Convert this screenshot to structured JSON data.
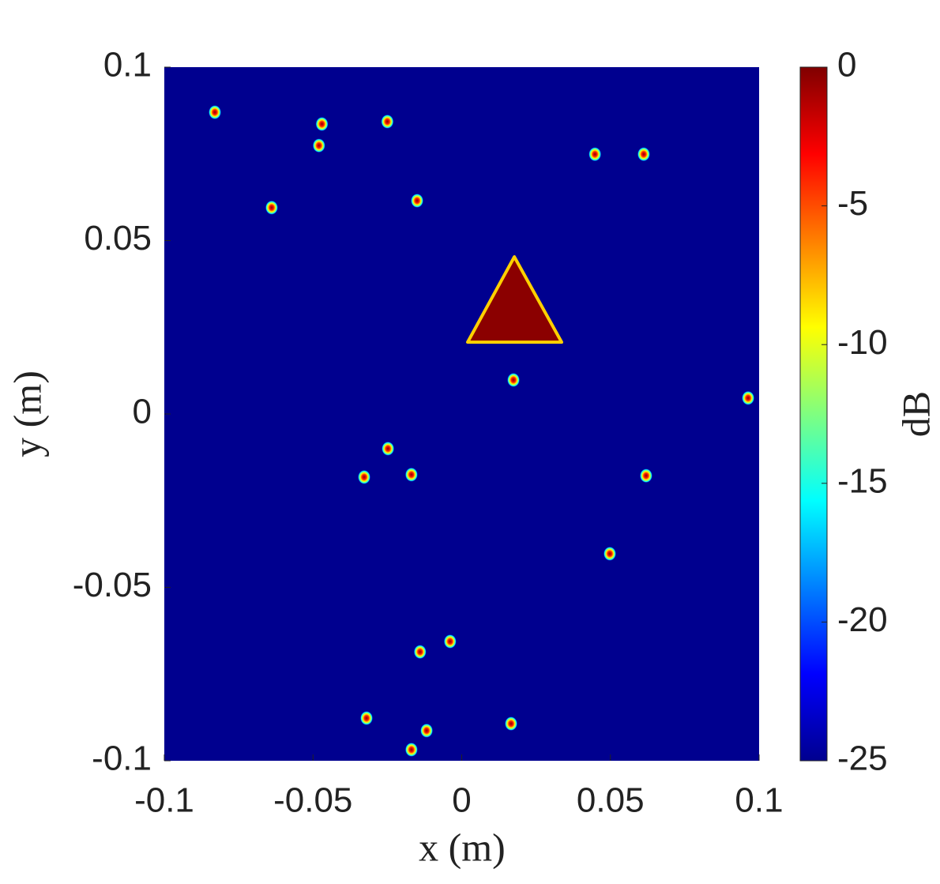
{
  "chart_data": {
    "type": "scatter",
    "xlabel": "x (m)",
    "ylabel": "y (m)",
    "xlim": [
      -0.1,
      0.1
    ],
    "xticks": [
      -0.1,
      -0.05,
      0,
      0.05,
      0.1
    ],
    "ylim": [
      -0.1,
      0.1
    ],
    "yticks": [
      -0.1,
      -0.05,
      0,
      0.05,
      0.1
    ],
    "background_color": "#00008f",
    "series": [
      {
        "x": [
          -0.083,
          -0.047,
          -0.025,
          -0.048,
          0.0448,
          0.0612,
          -0.0639,
          -0.015,
          0.0174,
          0.0963,
          -0.0248,
          -0.0328,
          -0.0169,
          0.062,
          0.0498,
          -0.0039,
          -0.014,
          -0.032,
          -0.0118,
          0.0166,
          -0.0169
        ],
        "y": [
          0.087,
          0.0836,
          0.0843,
          0.0774,
          0.0749,
          0.0749,
          0.0595,
          0.0615,
          0.0098,
          0.0046,
          -0.01,
          -0.0182,
          -0.0175,
          -0.0178,
          -0.0403,
          -0.0656,
          -0.0686,
          -0.0877,
          -0.0913,
          -0.0893,
          -0.0968
        ]
      }
    ],
    "regions": [
      {
        "x": [
          0.0177,
          0.002,
          0.0336
        ],
        "y": [
          0.0453,
          0.0207,
          0.0207
        ],
        "color": "#8b0000"
      }
    ],
    "colorbar": {
      "label": "dB",
      "colormap": "jet",
      "lim": [
        -25,
        0
      ],
      "ticks": [
        0,
        -5,
        -10,
        -15,
        -20,
        -25
      ]
    }
  }
}
